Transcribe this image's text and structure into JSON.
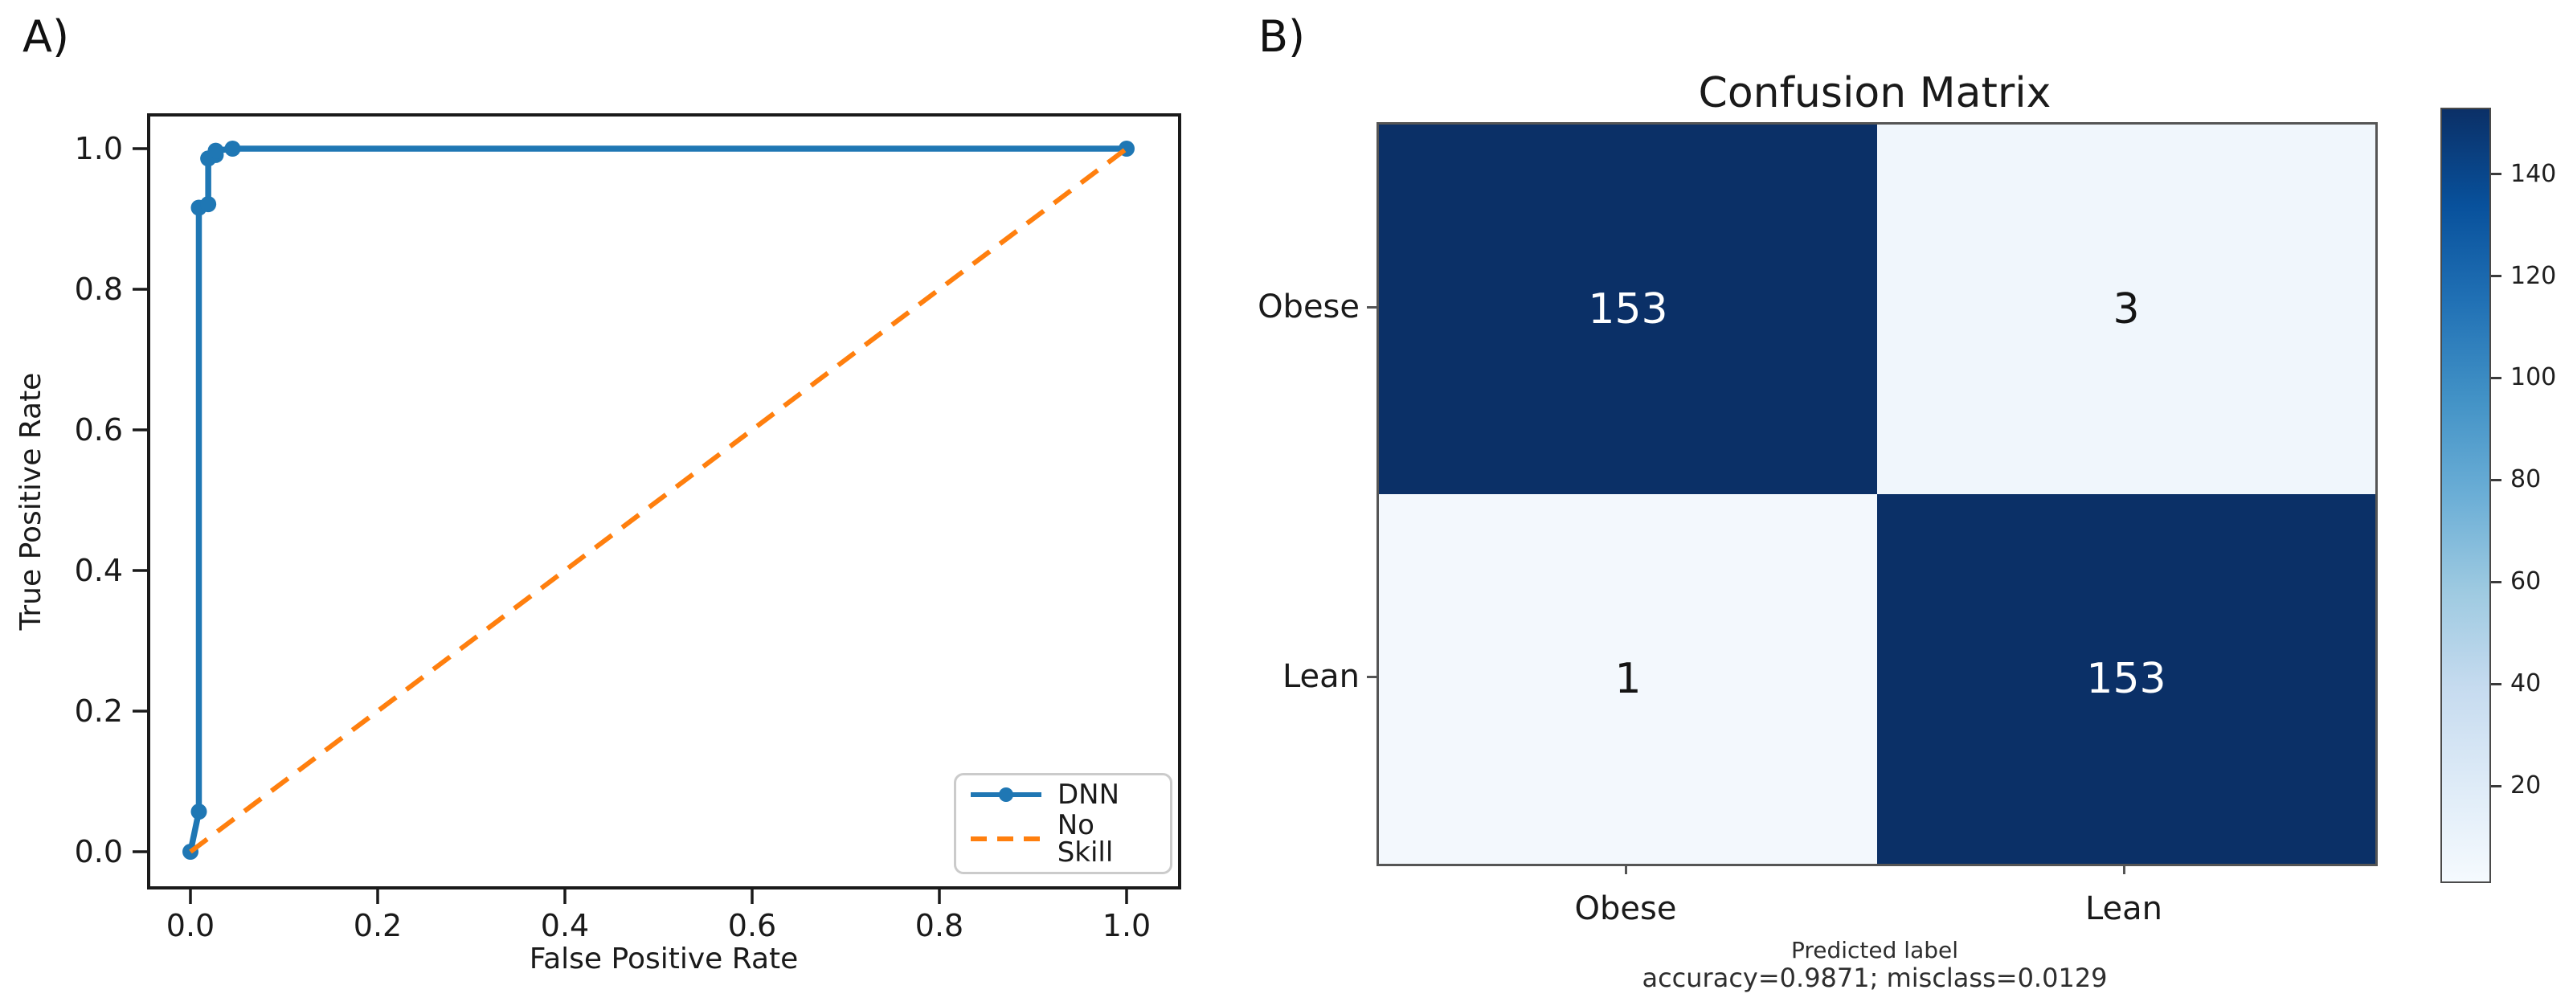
{
  "panels": {
    "a_label": "A)",
    "b_label": "B)"
  },
  "chart_data": [
    {
      "type": "line",
      "title": "",
      "xlabel": "False Positive Rate",
      "ylabel": "True Positive Rate",
      "xlim": [
        -0.045,
        1.045
      ],
      "ylim": [
        -0.05,
        1.05
      ],
      "xticks": [
        0.0,
        0.2,
        0.4,
        0.6,
        0.8,
        1.0
      ],
      "xtick_labels": [
        "0.0",
        "0.2",
        "0.4",
        "0.6",
        "0.8",
        "1.0"
      ],
      "yticks": [
        0.0,
        0.2,
        0.4,
        0.6,
        0.8,
        1.0
      ],
      "ytick_labels": [
        "0.0",
        "0.2",
        "0.4",
        "0.6",
        "0.8",
        "1.0"
      ],
      "grid": false,
      "legend_position": "lower right",
      "series": [
        {
          "name": "DNN",
          "color": "#1f77b4",
          "line_style": "solid",
          "marker": "circle",
          "points": [
            [
              0.0,
              0.0
            ],
            [
              0.009,
              0.057
            ],
            [
              0.009,
              0.916
            ],
            [
              0.019,
              0.921
            ],
            [
              0.019,
              0.986
            ],
            [
              0.027,
              0.991
            ],
            [
              0.027,
              0.997
            ],
            [
              0.045,
              1.0
            ],
            [
              1.0,
              1.0
            ]
          ]
        },
        {
          "name": "No Skill",
          "color": "#ff7f0e",
          "line_style": "dashed",
          "marker": "none",
          "points": [
            [
              0.0,
              0.0
            ],
            [
              1.0,
              1.0
            ]
          ]
        }
      ]
    },
    {
      "type": "heatmap",
      "title": "Confusion Matrix",
      "row_labels": [
        "Obese",
        "Lean"
      ],
      "col_labels": [
        "Obese",
        "Lean"
      ],
      "values": [
        [
          153,
          3
        ],
        [
          1,
          153
        ]
      ],
      "xlabel": "Predicted label",
      "annotation": "accuracy=0.9871; misclass=0.0129",
      "colormap": "Blues",
      "vmin": 1,
      "vmax": 153,
      "colorbar_ticks": [
        20,
        40,
        60,
        80,
        100,
        120,
        140
      ],
      "cell_colors": [
        [
          "#0b3067",
          "#f0f6fc"
        ],
        [
          "#f3f8fd",
          "#0b3067"
        ]
      ],
      "cell_text_colors": [
        [
          "#ffffff",
          "#141414"
        ],
        [
          "#141414",
          "#ffffff"
        ]
      ],
      "colorbar_gradient": [
        "#f5fafe",
        "#deebf7",
        "#c6dbef",
        "#9ecae1",
        "#6baed6",
        "#4292c6",
        "#2171b5",
        "#08519c",
        "#0b3067"
      ]
    }
  ]
}
